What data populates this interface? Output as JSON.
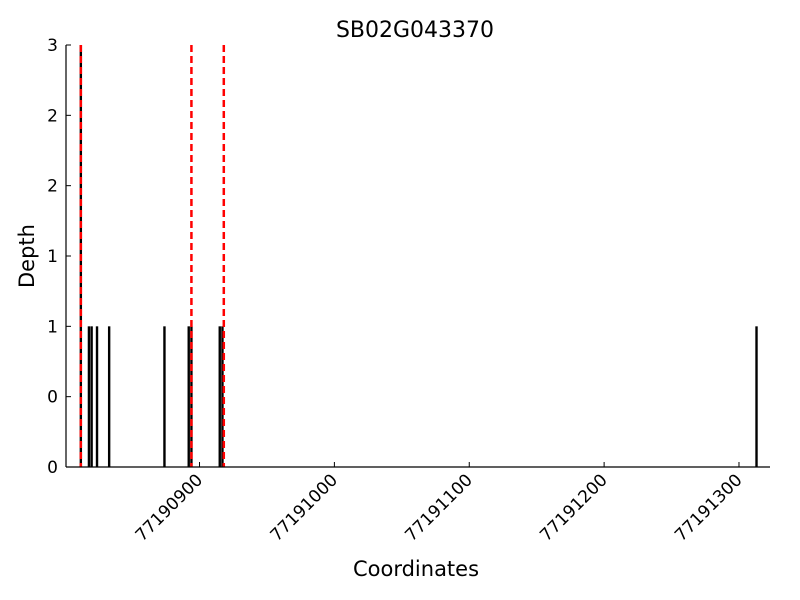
{
  "chart_data": {
    "type": "bar",
    "title": "SB02G043370",
    "xlabel": "Coordinates",
    "ylabel": "Depth",
    "x": [
      77190812,
      77190818,
      77190820,
      77190824,
      77190833,
      77190874,
      77190892,
      77190894,
      77190915,
      77190917,
      77191313
    ],
    "values": [
      3,
      1,
      1,
      1,
      1,
      1,
      1,
      1,
      1,
      1,
      1
    ],
    "color": "#000000",
    "vlines": {
      "x": [
        77190812,
        77190894,
        77190918
      ],
      "color": "#ff0000"
    },
    "xlim": [
      77190801,
      77191323
    ],
    "xticks": [
      77190900,
      77191000,
      77191100,
      77191200,
      77191300
    ],
    "ylim": [
      0,
      3
    ],
    "yticks": [
      {
        "value": 0,
        "label": "0"
      },
      {
        "value": 0.5,
        "label": "0"
      },
      {
        "value": 1,
        "label": "1"
      },
      {
        "value": 1.5,
        "label": "1"
      },
      {
        "value": 2,
        "label": "2"
      },
      {
        "value": 2.5,
        "label": "2"
      },
      {
        "value": 3,
        "label": "3"
      }
    ]
  }
}
